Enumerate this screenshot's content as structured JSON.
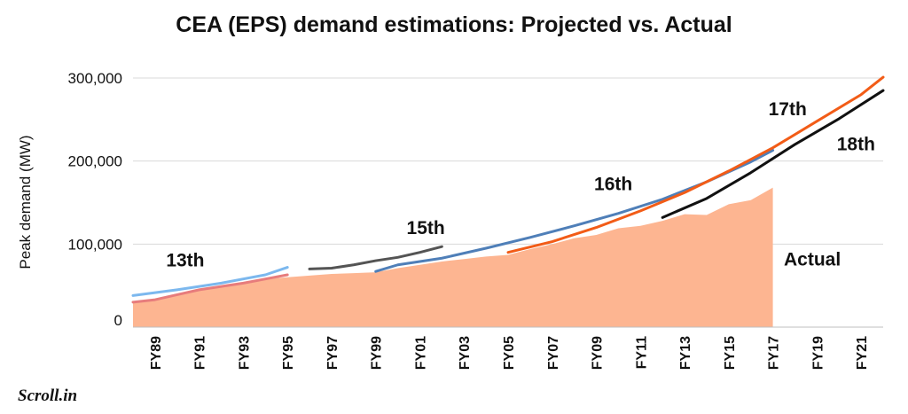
{
  "brand": {
    "logo_text": "Scroll.in"
  },
  "chart_data": {
    "type": "area",
    "title": "CEA (EPS) demand estimations: Projected vs. Actual",
    "ylabel": "Peak demand (MW)",
    "xlabel": "",
    "ylim": [
      0,
      300000
    ],
    "yticks": [
      0,
      100000,
      200000,
      300000
    ],
    "ytick_labels": [
      "0",
      "100,000",
      "200,000",
      "300,000"
    ],
    "x_start": 1988,
    "x_end": 2022,
    "xticks": [
      1989,
      1991,
      1993,
      1995,
      1997,
      1999,
      2001,
      2003,
      2005,
      2007,
      2009,
      2011,
      2013,
      2015,
      2017,
      2019,
      2021
    ],
    "xtick_labels": [
      "FY89",
      "FY91",
      "FY93",
      "FY95",
      "FY97",
      "FY99",
      "FY01",
      "FY03",
      "FY05",
      "FY07",
      "FY09",
      "FY11",
      "FY13",
      "FY15",
      "FY17",
      "FY19",
      "FY21"
    ],
    "grid": true,
    "actual": {
      "name": "Actual",
      "color": "#fdb591",
      "x": [
        1988,
        1989,
        1990,
        1991,
        1992,
        1993,
        1994,
        1995,
        1996,
        1997,
        1998,
        1999,
        2000,
        2001,
        2002,
        2003,
        2004,
        2005,
        2006,
        2007,
        2008,
        2009,
        2010,
        2011,
        2012,
        2013,
        2014,
        2015,
        2016,
        2017
      ],
      "values": [
        29000,
        32000,
        40000,
        46000,
        50000,
        54000,
        58000,
        60000,
        62000,
        64000,
        65000,
        66000,
        71000,
        75000,
        79000,
        82000,
        85000,
        87000,
        94000,
        100000,
        107000,
        111000,
        119000,
        122000,
        128000,
        136000,
        135000,
        148000,
        153000,
        168000
      ]
    },
    "series": [
      {
        "name": "13th",
        "color": "#7cb8ee",
        "x": [
          1988,
          1990,
          1992,
          1994,
          1995
        ],
        "values": [
          38000,
          45000,
          53000,
          63000,
          72000
        ]
      },
      {
        "name": "13th",
        "color": "#e77c7c",
        "x": [
          1988,
          1989,
          1990,
          1991,
          1992,
          1993,
          1994,
          1995
        ],
        "values": [
          30000,
          33000,
          39000,
          45000,
          49000,
          53000,
          58000,
          63000
        ]
      },
      {
        "name": "15th",
        "color": "#545454",
        "x": [
          1996,
          1997,
          1998,
          1999,
          2000,
          2001,
          2002
        ],
        "values": [
          70000,
          71000,
          75000,
          80000,
          84000,
          90000,
          97000
        ]
      },
      {
        "name": "16th",
        "color": "#4f7fb8",
        "x": [
          1999,
          2000,
          2002,
          2004,
          2006,
          2008,
          2010,
          2012,
          2014,
          2016,
          2017
        ],
        "values": [
          67000,
          75000,
          83000,
          95000,
          108000,
          122000,
          137000,
          154000,
          175000,
          199000,
          213000
        ]
      },
      {
        "name": "17th",
        "color": "#f25c17",
        "x": [
          2005,
          2007,
          2009,
          2011,
          2013,
          2015,
          2017,
          2019,
          2021,
          2022
        ],
        "values": [
          90000,
          103000,
          120000,
          140000,
          162000,
          188000,
          216000,
          248000,
          280000,
          301000
        ]
      },
      {
        "name": "18th",
        "color": "#111111",
        "x": [
          2012,
          2014,
          2016,
          2018,
          2020,
          2022
        ],
        "values": [
          132000,
          155000,
          186000,
          220000,
          251000,
          285000
        ]
      }
    ],
    "labels": [
      {
        "text": "13th",
        "x": 1989.5,
        "y": 73000
      },
      {
        "text": "15th",
        "x": 2000.4,
        "y": 112000
      },
      {
        "text": "16th",
        "x": 2008.9,
        "y": 165000
      },
      {
        "text": "17th",
        "x": 2016.8,
        "y": 255000
      },
      {
        "text": "18th",
        "x": 2019.9,
        "y": 213000
      },
      {
        "text": "Actual",
        "x": 2017.5,
        "y": 74000
      }
    ]
  }
}
